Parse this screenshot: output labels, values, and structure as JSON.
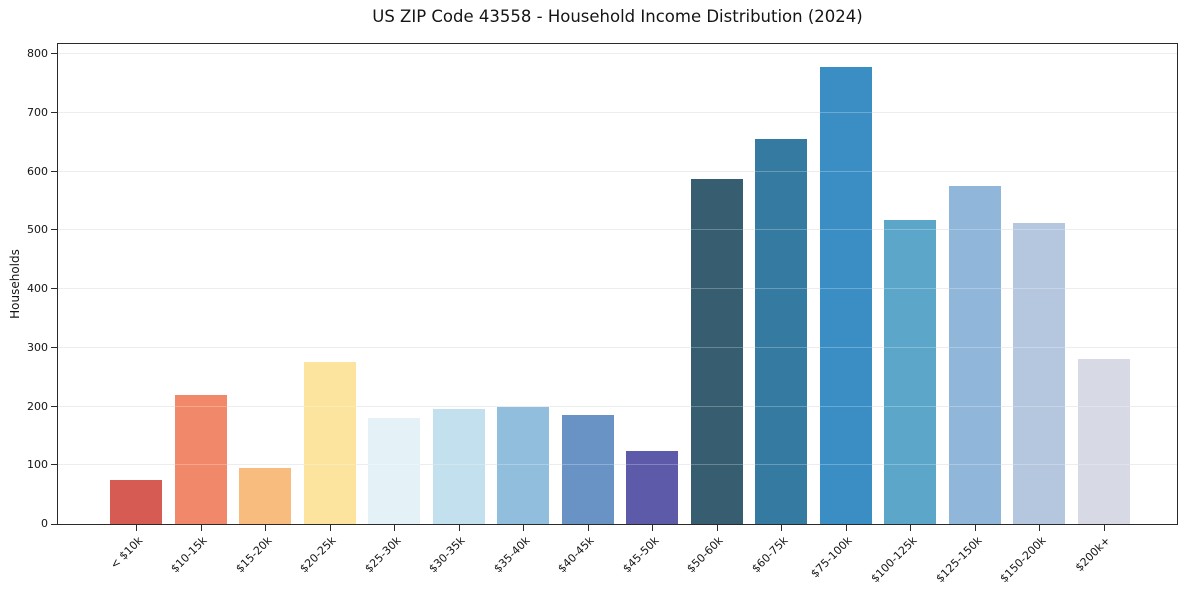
{
  "chart_data": {
    "type": "bar",
    "title": "US ZIP Code 43558 - Household Income Distribution (2024)",
    "xlabel": "",
    "ylabel": "Households",
    "categories": [
      "< $10k",
      "$10-15k",
      "$15-20k",
      "$20-25k",
      "$25-30k",
      "$30-35k",
      "$35-40k",
      "$40-45k",
      "$45-50k",
      "$50-60k",
      "$60-75k",
      "$75-100k",
      "$100-125k",
      "$125-150k",
      "$150-200k",
      "$200k+"
    ],
    "values": [
      75,
      219,
      95,
      275,
      180,
      195,
      200,
      186,
      125,
      587,
      656,
      778,
      517,
      575,
      512,
      281
    ],
    "bar_colors": [
      "#d65b52",
      "#f2886a",
      "#f8bc7e",
      "#fce49e",
      "#e4f2f8",
      "#c2e0ed",
      "#91bedd",
      "#6a93c5",
      "#5c5aa9",
      "#375e70",
      "#347aa1",
      "#3a8ec4",
      "#5ca6c9",
      "#90b6da",
      "#b5c7de",
      "#d7d9e5"
    ],
    "ylim": [
      0,
      817
    ],
    "yticks": [
      0,
      100,
      200,
      300,
      400,
      500,
      600,
      700,
      800
    ],
    "grid": "horizontal",
    "legend": "none",
    "colors": {
      "axis": "#2a2a2a",
      "grid": "#e7e7eb",
      "text": "#151515",
      "background": "#ffffff"
    }
  }
}
